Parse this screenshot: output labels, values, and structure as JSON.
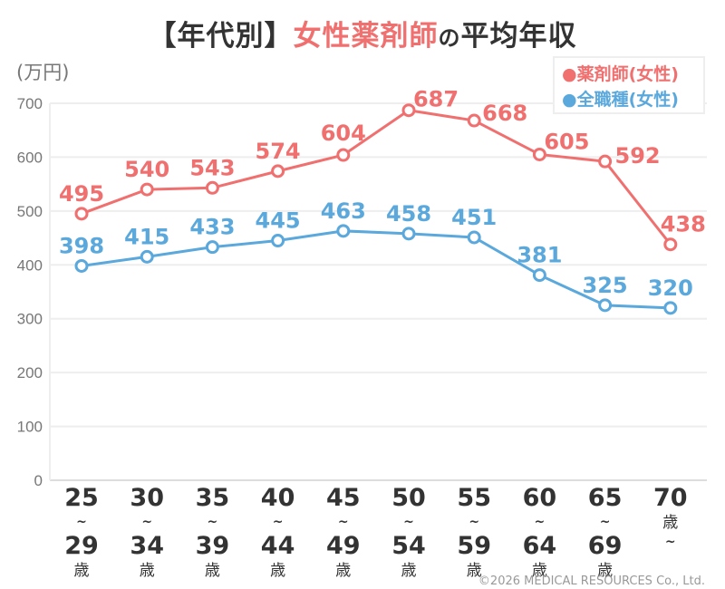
{
  "chart_data": {
    "type": "line",
    "title_parts": [
      "【年代別】",
      "女性薬剤師",
      "の",
      "平均年収"
    ],
    "ylabel": "(万円)",
    "ylim": [
      0,
      700
    ],
    "yticks": [
      0,
      100,
      200,
      300,
      400,
      500,
      600,
      700
    ],
    "grid": true,
    "legend_position": "top-right",
    "categories": [
      [
        "25",
        "~",
        "29",
        "歳"
      ],
      [
        "30",
        "~",
        "34",
        "歳"
      ],
      [
        "35",
        "~",
        "39",
        "歳"
      ],
      [
        "40",
        "~",
        "44",
        "歳"
      ],
      [
        "45",
        "~",
        "49",
        "歳"
      ],
      [
        "50",
        "~",
        "54",
        "歳"
      ],
      [
        "55",
        "~",
        "59",
        "歳"
      ],
      [
        "60",
        "~",
        "64",
        "歳"
      ],
      [
        "65",
        "~",
        "69",
        "歳"
      ],
      [
        "70",
        "歳",
        "~"
      ]
    ],
    "series": [
      {
        "name": "●薬剤師(女性)",
        "color": "#f07070",
        "values": [
          495,
          540,
          543,
          574,
          604,
          687,
          668,
          605,
          592,
          438
        ]
      },
      {
        "name": "●全職種(女性)",
        "color": "#5aa8dc",
        "values": [
          398,
          415,
          433,
          445,
          463,
          458,
          451,
          381,
          325,
          320
        ]
      }
    ]
  },
  "footer": {
    "copyright": "©2026 MEDICAL RESOURCES Co., Ltd."
  }
}
